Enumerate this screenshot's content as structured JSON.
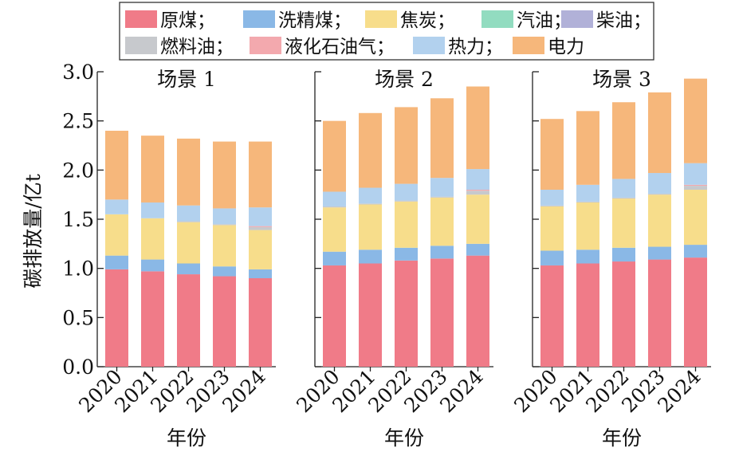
{
  "chart_data": {
    "type": "bar",
    "stacked": true,
    "ylabel": "碳排放量/亿t",
    "ylim": [
      0,
      3.0
    ],
    "yticks": [
      "0.0",
      "0.5",
      "1.0",
      "1.5",
      "2.0",
      "2.5",
      "3.0"
    ],
    "legend_position": "top",
    "legend": [
      "原煤；",
      "洗精煤；",
      "焦炭；",
      "汽油；",
      "柴油；",
      "燃料油；",
      "液化石油气；",
      "热力；",
      "电力"
    ],
    "colors": [
      "#f07b88",
      "#8ab8e6",
      "#f7dd8b",
      "#92dcc0",
      "#b1b1d8",
      "#c7c9cd",
      "#f3a9ae",
      "#b2d1ee",
      "#f6b77b"
    ],
    "panels": [
      {
        "title": "场景 1",
        "xlabel": "年份",
        "categories": [
          "2020",
          "2021",
          "2022",
          "2023",
          "2024"
        ],
        "series": [
          {
            "name": "原煤",
            "values": [
              0.99,
              0.97,
              0.94,
              0.92,
              0.9
            ]
          },
          {
            "name": "洗精煤",
            "values": [
              0.14,
              0.12,
              0.11,
              0.1,
              0.09
            ]
          },
          {
            "name": "焦炭",
            "values": [
              0.42,
              0.42,
              0.42,
              0.42,
              0.4
            ]
          },
          {
            "name": "汽油",
            "values": [
              0.0,
              0.0,
              0.0,
              0.0,
              0.0
            ]
          },
          {
            "name": "柴油",
            "values": [
              0.0,
              0.0,
              0.0,
              0.0,
              0.0
            ]
          },
          {
            "name": "燃料油",
            "values": [
              0.0,
              0.0,
              0.01,
              0.01,
              0.03
            ]
          },
          {
            "name": "液化石油气",
            "values": [
              0.0,
              0.0,
              0.0,
              0.0,
              0.01
            ]
          },
          {
            "name": "热力",
            "values": [
              0.15,
              0.16,
              0.16,
              0.16,
              0.19
            ]
          },
          {
            "name": "电力",
            "values": [
              0.7,
              0.68,
              0.68,
              0.68,
              0.67
            ]
          }
        ]
      },
      {
        "title": "场景 2",
        "xlabel": "年份",
        "categories": [
          "2020",
          "2021",
          "2022",
          "2023",
          "2024"
        ],
        "series": [
          {
            "name": "原煤",
            "values": [
              1.03,
              1.05,
              1.08,
              1.1,
              1.13
            ]
          },
          {
            "name": "洗精煤",
            "values": [
              0.14,
              0.14,
              0.13,
              0.13,
              0.12
            ]
          },
          {
            "name": "焦炭",
            "values": [
              0.45,
              0.46,
              0.47,
              0.49,
              0.5
            ]
          },
          {
            "name": "汽油",
            "values": [
              0.0,
              0.0,
              0.0,
              0.0,
              0.0
            ]
          },
          {
            "name": "柴油",
            "values": [
              0.0,
              0.0,
              0.0,
              0.0,
              0.0
            ]
          },
          {
            "name": "燃料油",
            "values": [
              0.01,
              0.01,
              0.01,
              0.01,
              0.04
            ]
          },
          {
            "name": "液化石油气",
            "values": [
              0.0,
              0.0,
              0.0,
              0.0,
              0.01
            ]
          },
          {
            "name": "热力",
            "values": [
              0.15,
              0.16,
              0.17,
              0.19,
              0.21
            ]
          },
          {
            "name": "电力",
            "values": [
              0.72,
              0.76,
              0.78,
              0.81,
              0.84
            ]
          }
        ]
      },
      {
        "title": "场景 3",
        "xlabel": "年份",
        "categories": [
          "2020",
          "2021",
          "2022",
          "2023",
          "2024"
        ],
        "series": [
          {
            "name": "原煤",
            "values": [
              1.03,
              1.05,
              1.07,
              1.09,
              1.11
            ]
          },
          {
            "name": "洗精煤",
            "values": [
              0.15,
              0.14,
              0.14,
              0.13,
              0.13
            ]
          },
          {
            "name": "焦炭",
            "values": [
              0.45,
              0.48,
              0.5,
              0.53,
              0.56
            ]
          },
          {
            "name": "汽油",
            "values": [
              0.0,
              0.0,
              0.0,
              0.0,
              0.0
            ]
          },
          {
            "name": "柴油",
            "values": [
              0.0,
              0.0,
              0.0,
              0.0,
              0.0
            ]
          },
          {
            "name": "燃料油",
            "values": [
              0.01,
              0.01,
              0.01,
              0.01,
              0.04
            ]
          },
          {
            "name": "液化石油气",
            "values": [
              0.0,
              0.0,
              0.0,
              0.0,
              0.01
            ]
          },
          {
            "name": "热力",
            "values": [
              0.16,
              0.17,
              0.19,
              0.21,
              0.22
            ]
          },
          {
            "name": "电力",
            "values": [
              0.72,
              0.75,
              0.78,
              0.82,
              0.86
            ]
          }
        ]
      }
    ]
  }
}
